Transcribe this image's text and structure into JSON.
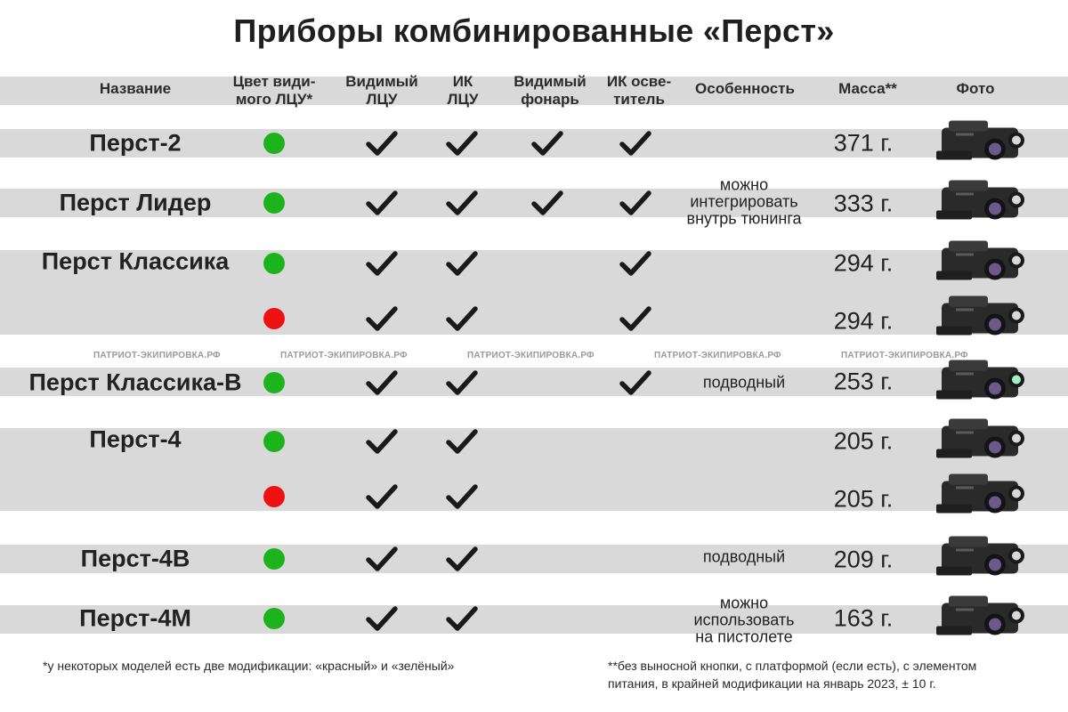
{
  "title": "Приборы комбинированные «Перст»",
  "headers": {
    "name": "Название",
    "color": [
      "Цвет види-",
      "мого ЛЦУ*"
    ],
    "visible_ldu": [
      "Видимый",
      "ЛЦУ"
    ],
    "ir_ldu": [
      "ИК",
      "ЛЦУ"
    ],
    "visible_light": [
      "Видимый",
      "фонарь"
    ],
    "ir_illuminator": [
      "ИК осве-",
      "титель"
    ],
    "feature": "Особенность",
    "mass": "Масса**",
    "photo": "Фото"
  },
  "rows": [
    {
      "name": "Перст-2",
      "color": "green",
      "visible_ldu": true,
      "ir_ldu": true,
      "visible_light": true,
      "ir_illuminator": true,
      "mass": "371 г."
    },
    {
      "name": "Перст Лидер",
      "color": "green",
      "visible_ldu": true,
      "ir_ldu": true,
      "visible_light": true,
      "ir_illuminator": true,
      "feature": [
        "можно",
        "интегрировать",
        "внутрь тюнинга"
      ],
      "mass": "333 г."
    },
    {
      "name": "Перст Классика",
      "color": "green",
      "visible_ldu": true,
      "ir_ldu": true,
      "visible_light": false,
      "ir_illuminator": true,
      "mass": "294 г."
    },
    {
      "name": "",
      "color": "red",
      "visible_ldu": true,
      "ir_ldu": true,
      "visible_light": false,
      "ir_illuminator": true,
      "mass": "294 г."
    },
    {
      "name": "Перст Классика-В",
      "color": "green",
      "visible_ldu": true,
      "ir_ldu": true,
      "visible_light": false,
      "ir_illuminator": true,
      "feature": [
        "подводный"
      ],
      "mass": "253 г."
    },
    {
      "name": "Перст-4",
      "color": "green",
      "visible_ldu": true,
      "ir_ldu": true,
      "visible_light": false,
      "ir_illuminator": false,
      "mass": "205 г."
    },
    {
      "name": "",
      "color": "red",
      "visible_ldu": true,
      "ir_ldu": true,
      "visible_light": false,
      "ir_illuminator": false,
      "mass": "205 г."
    },
    {
      "name": "Перст-4В",
      "color": "green",
      "visible_ldu": true,
      "ir_ldu": true,
      "visible_light": false,
      "ir_illuminator": false,
      "feature": [
        "подводный"
      ],
      "mass": "209 г."
    },
    {
      "name": "Перст-4М",
      "color": "green",
      "visible_ldu": true,
      "ir_ldu": true,
      "visible_light": false,
      "ir_illuminator": false,
      "feature": [
        "можно",
        "использовать",
        "на пистолете"
      ],
      "mass": "163 г."
    }
  ],
  "watermark": "ПАТРИОТ-ЭКИПИРОВКА.РФ",
  "colors": {
    "green": "#1db31d",
    "red": "#ee1111",
    "band": "#d9d9d9"
  },
  "footnote_left": "*у некоторых моделей есть две модификации: «красный» и «зелёный»",
  "footnote_right": [
    "**без выносной кнопки, с платформой (если есть), с элементом",
    "питания, в крайней модификации на январь 2023, ± 10 г."
  ]
}
